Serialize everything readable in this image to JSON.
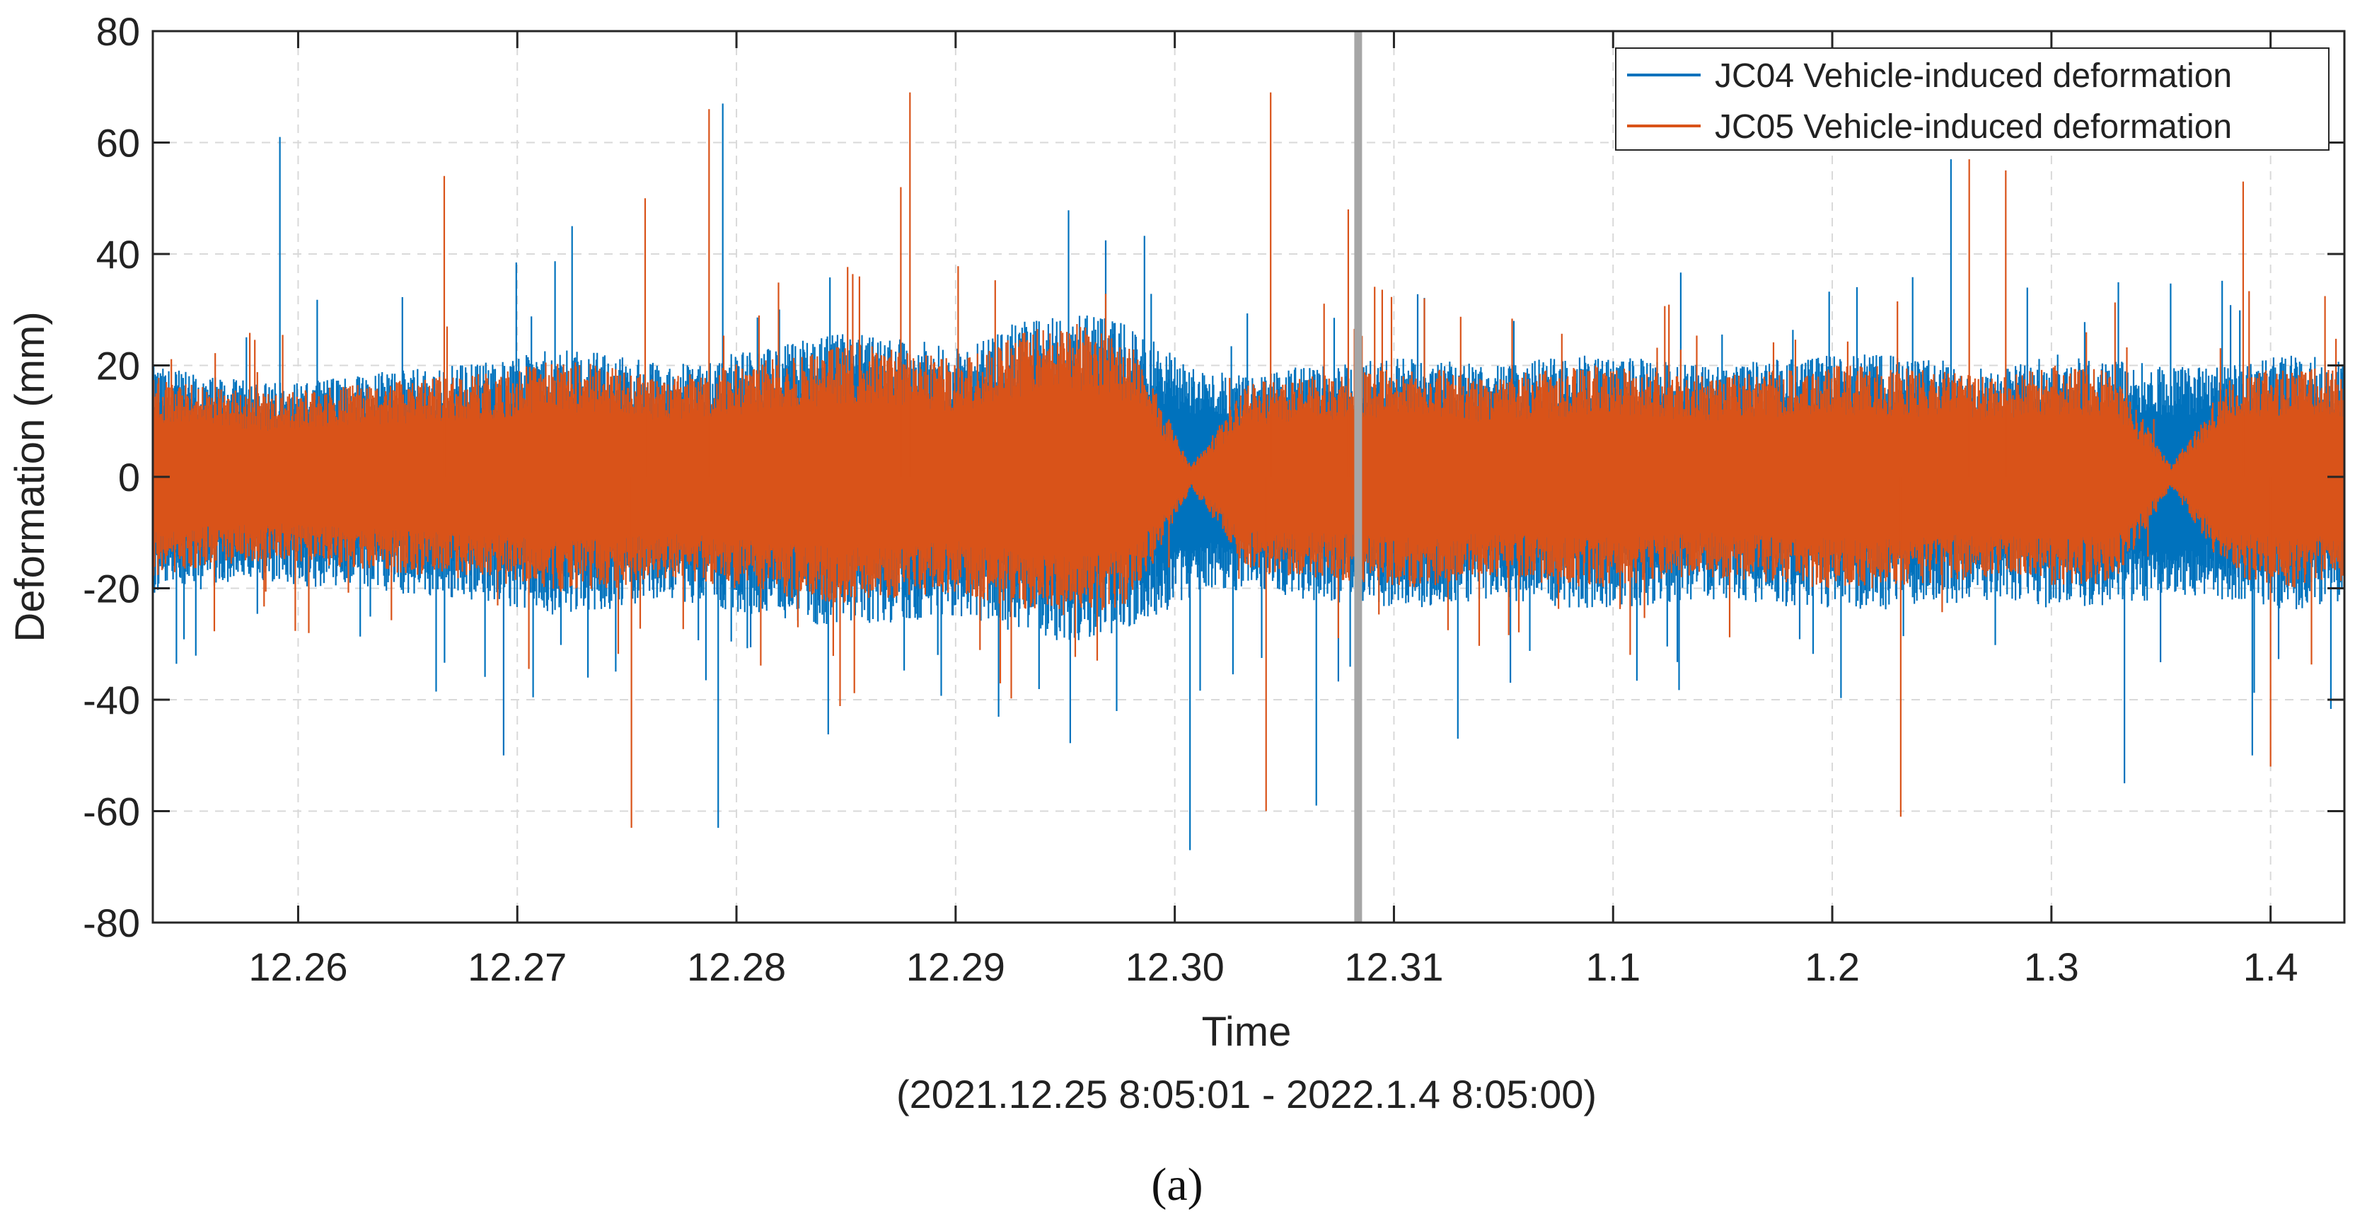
{
  "chart_data": {
    "type": "line",
    "xlabel": "Time",
    "xlabel_sub": "(2021.12.25 8:05:01 - 2022.1.4 8:05:00)",
    "ylabel": "Deformation (mm)",
    "panel_label": "(a)",
    "x_range": [
      "2021-12-25 08:05:01",
      "2022-01-04 08:05:00"
    ],
    "x_ticks": [
      {
        "label": "12.26",
        "date": "2021-12-26"
      },
      {
        "label": "12.27",
        "date": "2021-12-27"
      },
      {
        "label": "12.28",
        "date": "2021-12-28"
      },
      {
        "label": "12.29",
        "date": "2021-12-29"
      },
      {
        "label": "12.30",
        "date": "2021-12-30"
      },
      {
        "label": "12.31",
        "date": "2021-12-31"
      },
      {
        "label": "1.1",
        "date": "2022-01-01"
      },
      {
        "label": "1.2",
        "date": "2022-01-02"
      },
      {
        "label": "1.3",
        "date": "2022-01-03"
      },
      {
        "label": "1.4",
        "date": "2022-01-04"
      }
    ],
    "ylim": [
      -80,
      80
    ],
    "y_ticks": [
      "-80",
      "-60",
      "-40",
      "-20",
      "0",
      "20",
      "40",
      "60",
      "80"
    ],
    "grid": true,
    "legend_position": "top-right",
    "vertical_marker": {
      "date": "2021-12-30 20:05",
      "color": "#a6a6a6"
    },
    "series": [
      {
        "name": "JC04 Vehicle-induced deformation",
        "color": "#0072bd",
        "envelope_upper": [
          20,
          18,
          17,
          18,
          19,
          20,
          21,
          23,
          22,
          20,
          22,
          24,
          26,
          25,
          23,
          28,
          30,
          27,
          20,
          18,
          20,
          21,
          22,
          20,
          21,
          22,
          21,
          20,
          21,
          22,
          22,
          21,
          20,
          22,
          21,
          20,
          20,
          22,
          21
        ],
        "envelope_lower": [
          -22,
          -20,
          -19,
          -20,
          -21,
          -22,
          -23,
          -25,
          -24,
          -22,
          -24,
          -26,
          -27,
          -26,
          -25,
          -28,
          -30,
          -27,
          -22,
          -20,
          -22,
          -23,
          -24,
          -22,
          -23,
          -24,
          -23,
          -22,
          -23,
          -24,
          -24,
          -23,
          -22,
          -24,
          -23,
          -22,
          -22,
          -24,
          -23
        ],
        "spikes": [
          {
            "date": "2021-12-25 22:00",
            "value": 61
          },
          {
            "date": "2021-12-27 22:30",
            "value": 67
          },
          {
            "date": "2021-12-27 06:00",
            "value": 45
          },
          {
            "date": "2021-12-26 22:30",
            "value": -50
          },
          {
            "date": "2021-12-27 22:00",
            "value": -63
          },
          {
            "date": "2021-12-30 01:40",
            "value": -67
          },
          {
            "date": "2021-12-30 15:30",
            "value": -59
          },
          {
            "date": "2022-01-02 13:00",
            "value": 57
          },
          {
            "date": "2022-01-03 08:00",
            "value": -55
          },
          {
            "date": "2022-01-03 22:00",
            "value": -50
          },
          {
            "date": "2021-12-31 07:00",
            "value": -47
          }
        ]
      },
      {
        "name": "JC05 Vehicle-induced deformation",
        "color": "#d95319",
        "envelope_upper": [
          18,
          16,
          15,
          16,
          17,
          18,
          19,
          21,
          20,
          18,
          20,
          22,
          24,
          23,
          21,
          26,
          28,
          24,
          2,
          17,
          18,
          19,
          20,
          18,
          19,
          20,
          19,
          18,
          19,
          20,
          20,
          19,
          18,
          20,
          19,
          2,
          18,
          20,
          19
        ],
        "envelope_lower": [
          -18,
          -16,
          -15,
          -16,
          -17,
          -18,
          -19,
          -21,
          -20,
          -18,
          -20,
          -22,
          -23,
          -22,
          -21,
          -24,
          -26,
          -23,
          -2,
          -17,
          -18,
          -19,
          -20,
          -18,
          -19,
          -20,
          -19,
          -18,
          -19,
          -20,
          -20,
          -19,
          -18,
          -20,
          -19,
          -2,
          -18,
          -20,
          -19
        ],
        "spikes": [
          {
            "date": "2021-12-26 16:00",
            "value": 54
          },
          {
            "date": "2021-12-27 14:00",
            "value": 50
          },
          {
            "date": "2021-12-27 21:00",
            "value": 66
          },
          {
            "date": "2021-12-28 18:00",
            "value": 52
          },
          {
            "date": "2021-12-28 19:00",
            "value": 69
          },
          {
            "date": "2021-12-30 10:30",
            "value": 69
          },
          {
            "date": "2021-12-30 19:00",
            "value": 48
          },
          {
            "date": "2022-01-02 15:00",
            "value": 57
          },
          {
            "date": "2022-01-02 19:00",
            "value": 55
          },
          {
            "date": "2022-01-03 21:00",
            "value": 53
          },
          {
            "date": "2021-12-25 07:30",
            "value": -52
          },
          {
            "date": "2021-12-27 12:30",
            "value": -63
          },
          {
            "date": "2021-12-30 10:00",
            "value": -60
          },
          {
            "date": "2022-01-02 07:30",
            "value": -61
          },
          {
            "date": "2022-01-04 00:00",
            "value": -52
          }
        ]
      }
    ]
  }
}
